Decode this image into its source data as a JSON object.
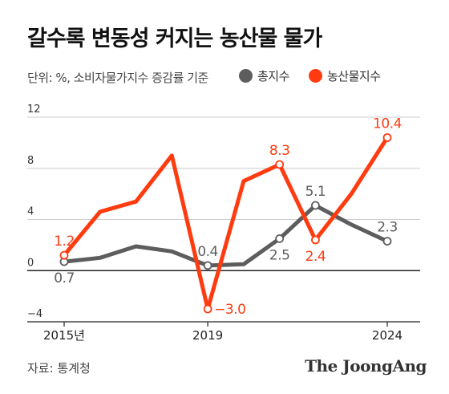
{
  "chart_data": {
    "type": "line",
    "title": "갈수록 변동성 커지는 농산물 물가",
    "subtitle": "단위: %, 소비자물가지수 증감률 기준",
    "x": [
      2015,
      2016,
      2017,
      2018,
      2019,
      2020,
      2021,
      2022,
      2023,
      2024
    ],
    "x_tick_labels": [
      "2015년",
      "2019",
      "2024"
    ],
    "x_tick_values": [
      2015,
      2019,
      2024
    ],
    "y_ticks": [
      -4,
      0,
      4,
      8,
      12
    ],
    "y_tick_labels": [
      "−4",
      "0",
      "4",
      "8",
      "12"
    ],
    "ylim": [
      -4,
      12
    ],
    "grid": true,
    "legend_position": "top-right",
    "series": [
      {
        "name": "총지수",
        "color": "#5d5d5d",
        "values": [
          0.7,
          1.0,
          1.9,
          1.5,
          0.4,
          0.5,
          2.5,
          5.1,
          3.6,
          2.3
        ]
      },
      {
        "name": "농산물지수",
        "color": "#ff3b0f",
        "values": [
          1.2,
          4.6,
          5.4,
          9.0,
          -3.0,
          7.0,
          8.3,
          2.4,
          6.0,
          10.4
        ]
      }
    ],
    "labeled_points": [
      {
        "series": 0,
        "index": 0,
        "text": "0.7",
        "pos": "below"
      },
      {
        "series": 0,
        "index": 4,
        "text": "0.4",
        "pos": "above"
      },
      {
        "series": 0,
        "index": 6,
        "text": "2.5",
        "pos": "below"
      },
      {
        "series": 0,
        "index": 7,
        "text": "5.1",
        "pos": "above"
      },
      {
        "series": 0,
        "index": 9,
        "text": "2.3",
        "pos": "above"
      },
      {
        "series": 1,
        "index": 0,
        "text": "1.2",
        "pos": "above"
      },
      {
        "series": 1,
        "index": 4,
        "text": "−3.0",
        "pos": "right"
      },
      {
        "series": 1,
        "index": 6,
        "text": "8.3",
        "pos": "above"
      },
      {
        "series": 1,
        "index": 7,
        "text": "2.4",
        "pos": "below"
      },
      {
        "series": 1,
        "index": 9,
        "text": "10.4",
        "pos": "above"
      }
    ]
  },
  "source": "자료: 통계청",
  "brand": "The JoongAng",
  "colors": {
    "axis": "#222222",
    "grid": "#cccccc",
    "background": "#ffffff"
  }
}
